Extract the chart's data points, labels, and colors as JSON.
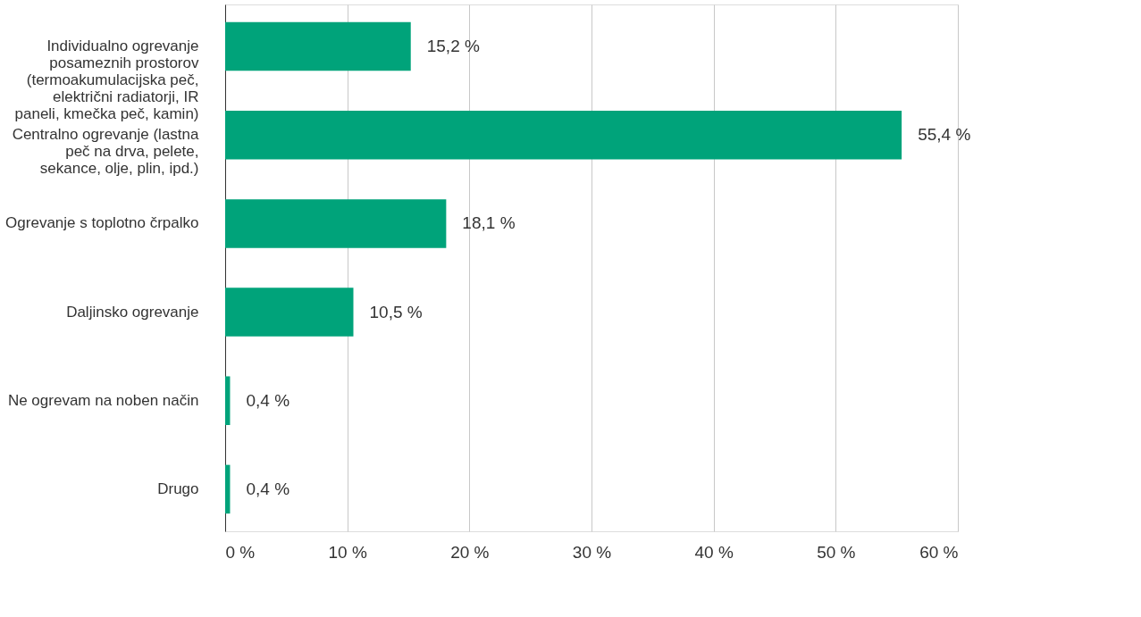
{
  "chart_data": {
    "type": "bar",
    "orientation": "horizontal",
    "categories": [
      "Individualno ogrevanje posameznih prostorov (termoakumulacijska peč, električni radiatorji, IR paneli, kmečka peč, kamin)",
      "Centralno ogrevanje (lastna peč na drva, pelete, sekance, olje, plin, ipd.)",
      "Ogrevanje s toplotno črpalko",
      "Daljinsko ogrevanje",
      "Ne ogrevam na noben način",
      "Drugo"
    ],
    "values": [
      15.2,
      55.4,
      18.1,
      10.5,
      0.4,
      0.4
    ],
    "value_labels": [
      "15,2 %",
      "55,4 %",
      "18,1 %",
      "10,5 %",
      "0,4 %",
      "0,4 %"
    ],
    "color": "#00a37a",
    "xlim": [
      0,
      60
    ],
    "xticks": [
      {
        "value": 0,
        "label": "0 %"
      },
      {
        "value": 10,
        "label": "10 %"
      },
      {
        "value": 20,
        "label": "20 %"
      },
      {
        "value": 30,
        "label": "30 %"
      },
      {
        "value": 40,
        "label": "40 %"
      },
      {
        "value": 50,
        "label": "50 %"
      },
      {
        "value": 60,
        "label": "60 %"
      }
    ],
    "grid": "x"
  }
}
